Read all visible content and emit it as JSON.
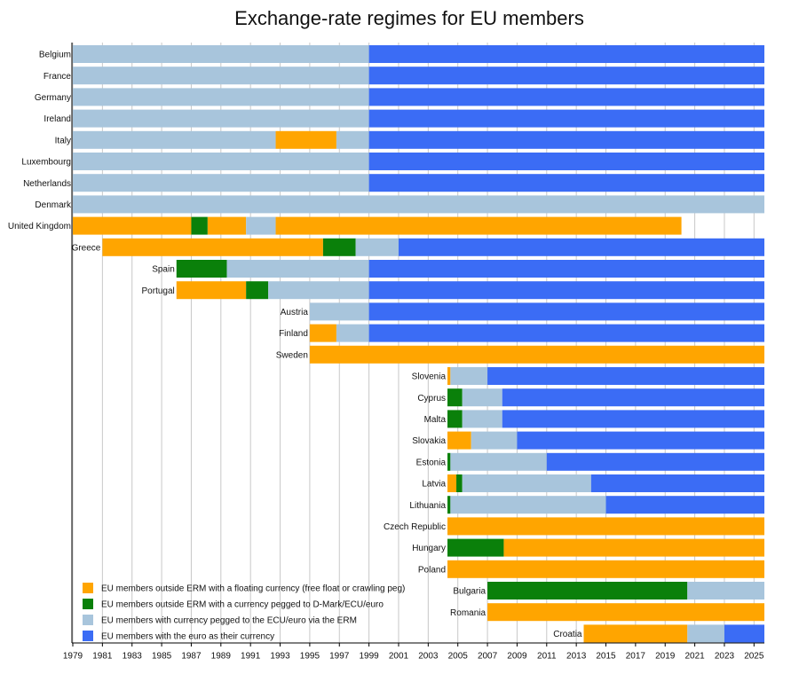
{
  "chart_data": {
    "type": "timeline",
    "title": "Exchange-rate regimes for EU members",
    "categories": [
      "Belgium",
      "France",
      "Germany",
      "Ireland",
      "Italy",
      "Luxembourg",
      "Netherlands",
      "Denmark",
      "United Kingdom",
      "Greece",
      "Spain",
      "Portugal",
      "Austria",
      "Finland",
      "Sweden",
      "Slovenia",
      "Cyprus",
      "Malta",
      "Slovakia",
      "Estonia",
      "Latvia",
      "Lithuania",
      "Czech Republic",
      "Hungary",
      "Poland",
      "Bulgaria",
      "Romania",
      "Croatia"
    ],
    "xlim": [
      1979,
      2025.7
    ],
    "xticks": [
      1979,
      1981,
      1983,
      1985,
      1987,
      1989,
      1991,
      1993,
      1995,
      1997,
      1999,
      2001,
      2003,
      2005,
      2007,
      2009,
      2011,
      2013,
      2015,
      2017,
      2019,
      2021,
      2023,
      2025
    ],
    "grid": true,
    "legend": "bottom-left",
    "series": [
      {
        "name": "EU members outside ERM with a floating currency (free float or crawling peg)",
        "color": "#ffa500",
        "spans": [
          [],
          [],
          [],
          [],
          [
            [
              1992.7,
              1996.8
            ]
          ],
          [],
          [],
          [],
          [
            [
              1979,
              1987
            ],
            [
              1988.1,
              1990.7
            ],
            [
              1992.7,
              2020.1
            ]
          ],
          [
            [
              1981,
              1995.9
            ]
          ],
          [],
          [
            [
              1986,
              1990.7
            ]
          ],
          [],
          [
            [
              1995,
              1996.8
            ]
          ],
          [
            [
              1995,
              2025.7
            ]
          ],
          [
            [
              2004.3,
              2004.5
            ]
          ],
          [],
          [],
          [
            [
              2004.3,
              2005.9
            ]
          ],
          [],
          [
            [
              2004.3,
              2004.9
            ]
          ],
          [],
          [
            [
              2004.3,
              2025.7
            ]
          ],
          [
            [
              2008.1,
              2025.7
            ]
          ],
          [
            [
              2004.3,
              2025.7
            ]
          ],
          [],
          [
            [
              2007,
              2025.7
            ]
          ],
          [
            [
              2013.5,
              2020.5
            ]
          ]
        ]
      },
      {
        "name": "EU members outside ERM with a currency pegged to D-Mark/ECU/euro",
        "color": "#0a800a",
        "spans": [
          [],
          [],
          [],
          [],
          [],
          [],
          [],
          [],
          [
            [
              1987,
              1988.1
            ]
          ],
          [
            [
              1995.9,
              1998.1
            ]
          ],
          [
            [
              1986,
              1989.4
            ]
          ],
          [
            [
              1990.7,
              1992.2
            ]
          ],
          [],
          [],
          [],
          [],
          [
            [
              2004.3,
              2005.3
            ]
          ],
          [
            [
              2004.3,
              2005.3
            ]
          ],
          [],
          [
            [
              2004.3,
              2004.5
            ]
          ],
          [
            [
              2004.9,
              2005.3
            ]
          ],
          [
            [
              2004.3,
              2004.5
            ]
          ],
          [],
          [
            [
              2004.3,
              2008.1
            ]
          ],
          [],
          [
            [
              2007,
              2020.5
            ]
          ],
          [],
          []
        ]
      },
      {
        "name": "EU members with currency pegged to the ECU/euro via the ERM",
        "color": "#a8c5dc",
        "spans": [
          [
            [
              1979,
              1999
            ]
          ],
          [
            [
              1979,
              1999
            ]
          ],
          [
            [
              1979,
              1999
            ]
          ],
          [
            [
              1979,
              1999
            ]
          ],
          [
            [
              1979,
              1992.7
            ],
            [
              1996.8,
              1999
            ]
          ],
          [
            [
              1979,
              1999
            ]
          ],
          [
            [
              1979,
              1999
            ]
          ],
          [
            [
              1979,
              2025.7
            ]
          ],
          [
            [
              1990.7,
              1992.7
            ]
          ],
          [
            [
              1998.1,
              2001
            ]
          ],
          [
            [
              1989.4,
              1999
            ]
          ],
          [
            [
              1992.2,
              1999
            ]
          ],
          [
            [
              1995,
              1999
            ]
          ],
          [
            [
              1996.8,
              1999
            ]
          ],
          [],
          [
            [
              2004.5,
              2007
            ]
          ],
          [
            [
              2005.3,
              2008
            ]
          ],
          [
            [
              2005.3,
              2008
            ]
          ],
          [
            [
              2005.9,
              2009
            ]
          ],
          [
            [
              2004.5,
              2011
            ]
          ],
          [
            [
              2005.3,
              2014
            ]
          ],
          [
            [
              2004.5,
              2015
            ]
          ],
          [],
          [],
          [],
          [
            [
              2020.5,
              2025.7
            ]
          ],
          [],
          [
            [
              2020.5,
              2023
            ]
          ]
        ]
      },
      {
        "name": "EU members with the euro as their currency",
        "color": "#3b6cf5",
        "spans": [
          [
            [
              1999,
              2025.7
            ]
          ],
          [
            [
              1999,
              2025.7
            ]
          ],
          [
            [
              1999,
              2025.7
            ]
          ],
          [
            [
              1999,
              2025.7
            ]
          ],
          [
            [
              1999,
              2025.7
            ]
          ],
          [
            [
              1999,
              2025.7
            ]
          ],
          [
            [
              1999,
              2025.7
            ]
          ],
          [],
          [],
          [
            [
              2001,
              2025.7
            ]
          ],
          [
            [
              1999,
              2025.7
            ]
          ],
          [
            [
              1999,
              2025.7
            ]
          ],
          [
            [
              1999,
              2025.7
            ]
          ],
          [
            [
              1999,
              2025.7
            ]
          ],
          [],
          [
            [
              2007,
              2025.7
            ]
          ],
          [
            [
              2008,
              2025.7
            ]
          ],
          [
            [
              2008,
              2025.7
            ]
          ],
          [
            [
              2009,
              2025.7
            ]
          ],
          [
            [
              2011,
              2025.7
            ]
          ],
          [
            [
              2014,
              2025.7
            ]
          ],
          [
            [
              2015,
              2025.7
            ]
          ],
          [],
          [],
          [],
          [],
          [],
          [
            [
              2023,
              2025.7
            ]
          ]
        ]
      }
    ]
  }
}
